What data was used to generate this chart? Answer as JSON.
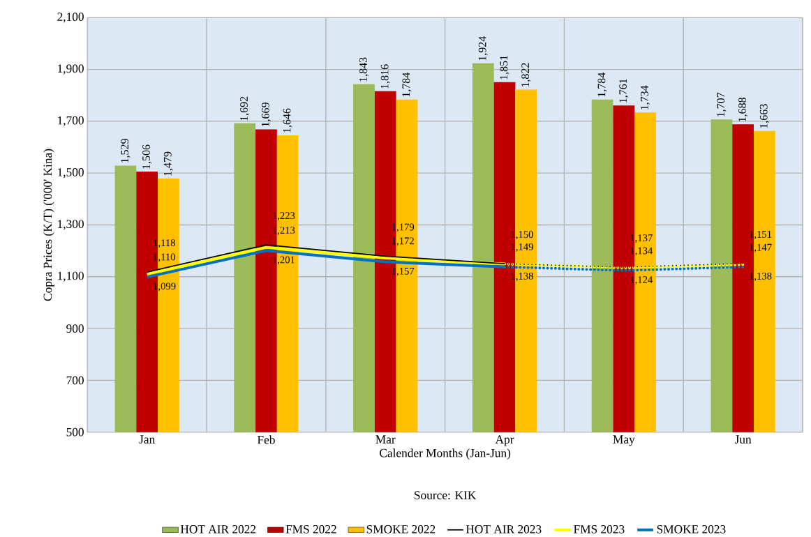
{
  "chart_data": {
    "type": "bar",
    "xlabel": "Calender Months (Jan-Jun)",
    "ylabel": "Copra Prices (K/T) ('000' Kina)",
    "annotations": [
      "Source: KIK"
    ],
    "categories": [
      "Jan",
      "Feb",
      "Mar",
      "Apr",
      "May",
      "Jun"
    ],
    "ylim": [
      500,
      2100
    ],
    "yticks": [
      500,
      700,
      900,
      {
        "value": 1100,
        "label": "1,100"
      },
      {
        "value": 1300,
        "label": "1,300"
      },
      {
        "value": 1500,
        "label": "1,500"
      },
      {
        "value": 1700,
        "label": "1,700"
      },
      {
        "value": 1900,
        "label": "1,900"
      },
      {
        "value": 2100,
        "label": "2,100"
      }
    ],
    "grid": true,
    "legend": "bottom",
    "series": [
      {
        "name": "HOT AIR 2022",
        "color": "#9bbb59",
        "values": [
          1529,
          1692,
          1843,
          1924,
          1784,
          1707
        ],
        "value_labels": [
          "1,529",
          "1,692",
          "1,843",
          "1,924",
          "1,784",
          "1,707"
        ]
      },
      {
        "name": "FMS 2022",
        "color": "#c00000",
        "values": [
          1506,
          1669,
          1816,
          1851,
          1761,
          1688
        ],
        "value_labels": [
          "1,506",
          "1,669",
          "1,816",
          "1,851",
          "1,761",
          "1,688"
        ]
      },
      {
        "name": "SMOKE 2022",
        "color": "#ffc000",
        "values": [
          1479,
          1646,
          1784,
          1822,
          1734,
          1663
        ],
        "value_labels": [
          "1,479",
          "1,646",
          "1,784",
          "1,822",
          "1,734",
          "1,663"
        ]
      },
      {
        "name": "HOT AIR 2023",
        "type": "line",
        "color": "#000000",
        "line_style": "solid",
        "values": [
          1118,
          1223,
          1179,
          1150,
          null,
          null
        ],
        "value_labels": [
          "1,118",
          "1,223",
          "1,179",
          "1,150",
          null,
          null
        ]
      },
      {
        "name": "FMS 2023",
        "type": "line",
        "color": "#ffff00",
        "line_style": "solid",
        "values": [
          1110,
          1213,
          1172,
          1149,
          null,
          null
        ],
        "value_labels": [
          "1,110",
          "1,213",
          "1,172",
          "1,149",
          null,
          null
        ]
      },
      {
        "name": "SMOKE 2023",
        "type": "line",
        "color": "#0070c0",
        "line_style": "solid",
        "values": [
          1099,
          1201,
          1157,
          1138,
          null,
          null
        ],
        "value_labels": [
          "1,099",
          "1,201",
          "1,157",
          "1,138",
          null,
          null
        ]
      },
      {
        "type": "line",
        "color": "#000000",
        "line_style": "dotted",
        "values": [
          null,
          null,
          null,
          1150,
          1137,
          1151
        ],
        "value_labels": [
          null,
          null,
          null,
          null,
          "1,137",
          "1,151"
        ]
      },
      {
        "type": "line",
        "color": "#ffff00",
        "line_style": "dotted",
        "values": [
          null,
          null,
          null,
          1149,
          1134,
          1147
        ],
        "value_labels": [
          null,
          null,
          null,
          null,
          "1,134",
          "1,147"
        ]
      },
      {
        "type": "line",
        "color": "#0070c0",
        "line_style": "dotted",
        "values": [
          null,
          null,
          null,
          1138,
          1124,
          1138
        ],
        "value_labels": [
          null,
          null,
          null,
          null,
          "1,124",
          "1,138"
        ]
      }
    ]
  }
}
